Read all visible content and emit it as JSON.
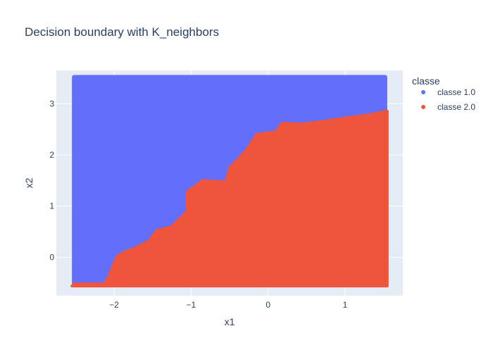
{
  "chart_data": {
    "type": "scatter",
    "title": "Decision boundary with K_neighbors",
    "xlabel": "x1",
    "ylabel": "x2",
    "xlim": [
      -2.75,
      1.75
    ],
    "ylim": [
      -0.75,
      3.65
    ],
    "x_ticks": [
      -2,
      -1,
      0,
      1
    ],
    "y_ticks": [
      0,
      1,
      2,
      3
    ],
    "x_tick_labels": [
      "−2",
      "−1",
      "0",
      "1"
    ],
    "y_tick_labels": [
      "0",
      "1",
      "2",
      "3"
    ],
    "grid": true,
    "legend": {
      "title": "classe",
      "position": "top-right"
    },
    "grid_extent": {
      "x": [
        -2.52,
        1.52
      ],
      "y": [
        -0.52,
        3.52
      ]
    },
    "series": [
      {
        "name": "classe 1.0",
        "color": "#636efa",
        "region": "above boundary"
      },
      {
        "name": "classe 2.0",
        "color": "#ef553b",
        "region": "below boundary"
      }
    ],
    "boundary": [
      [
        -2.52,
        -0.52
      ],
      [
        -2.12,
        -0.52
      ],
      [
        -2.05,
        -0.3
      ],
      [
        -1.97,
        0.0
      ],
      [
        -1.9,
        0.08
      ],
      [
        -1.7,
        0.2
      ],
      [
        -1.55,
        0.32
      ],
      [
        -1.45,
        0.52
      ],
      [
        -1.25,
        0.6
      ],
      [
        -1.05,
        0.9
      ],
      [
        -1.05,
        1.28
      ],
      [
        -0.85,
        1.5
      ],
      [
        -0.55,
        1.47
      ],
      [
        -0.5,
        1.75
      ],
      [
        -0.4,
        1.9
      ],
      [
        -0.28,
        2.1
      ],
      [
        -0.15,
        2.4
      ],
      [
        0.1,
        2.45
      ],
      [
        0.18,
        2.62
      ],
      [
        0.4,
        2.6
      ],
      [
        0.7,
        2.65
      ],
      [
        1.0,
        2.72
      ],
      [
        1.3,
        2.78
      ],
      [
        1.52,
        2.85
      ]
    ]
  },
  "legend_items": [
    {
      "label": "classe 1.0",
      "color": "#636efa"
    },
    {
      "label": "classe 2.0",
      "color": "#ef553b"
    }
  ]
}
